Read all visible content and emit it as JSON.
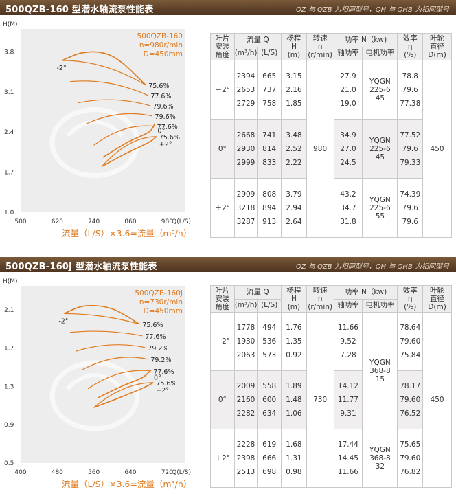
{
  "sections": [
    {
      "title": "500QZB-160 型潜水轴流泵性能表",
      "note": "QZ 与 QZB 为相同型号，QH 与 QHB 为相同型号",
      "chart_data": {
        "type": "line",
        "info_lines": [
          "500QZB-160",
          "n=980r/min",
          "D=450mm"
        ],
        "xlabel": "Q(L/S)",
        "ylabel": "H(M)",
        "xticks": [
          "500",
          "620",
          "740",
          "860",
          "980"
        ],
        "yticks": [
          "3.8",
          "3.1",
          "2.4",
          "1.7",
          "1.0"
        ],
        "xlim": [
          500,
          1040
        ],
        "ylim": [
          1.0,
          4.2
        ],
        "curves": [
          {
            "angle": "-2°",
            "points": [
              [
                636,
                3.65
              ],
              [
                700,
                3.78
              ],
              [
                770,
                3.78
              ],
              [
                830,
                3.62
              ],
              [
                910,
                3.22
              ]
            ]
          },
          {
            "angle": "0°",
            "points": [
              [
                770,
                1.96
              ],
              [
                850,
                2.22
              ],
              [
                920,
                2.4
              ],
              [
                940,
                2.55
              ]
            ]
          },
          {
            "angle": "+2°",
            "points": [
              [
                766,
                1.8
              ],
              [
                850,
                2.04
              ],
              [
                920,
                2.22
              ],
              [
                945,
                2.32
              ]
            ]
          }
        ],
        "efficiency_labels": [
          "75.6%",
          "77.6%",
          "79.6%",
          "79.6%",
          "77.6%",
          "75.6%"
        ],
        "angle_labels": [
          "-2°",
          "0°",
          "+2°"
        ]
      },
      "caption": "流量（L/S）×3.6=流量（m³/h）",
      "table": {
        "headers": {
          "blade_angle": "叶片\n安装\n角度",
          "flow": "流量 Q",
          "flow_m3h": "(m³/h)",
          "flow_ls": "(L/S)",
          "head": "杨程\nH\n(m)",
          "speed": "转速\nn\n(r/min)",
          "power": "功率 N（kw)",
          "shaft_power": "轴功率",
          "motor_power": "电机功率",
          "efficiency": "效率\nη\n(%)",
          "impeller": "叶轮\n直径\nD(m)"
        },
        "speed": "980",
        "impeller": "450",
        "groups": [
          {
            "angle": "－2°",
            "m3h": [
              "2394",
              "2653",
              "2729"
            ],
            "ls": [
              "665",
              "737",
              "758"
            ],
            "h": [
              "3.15",
              "2.16",
              "1.85"
            ],
            "shaft": [
              "27.9",
              "21.0",
              "19.0"
            ],
            "motor": "YQGN\n225-6\n45",
            "eff": [
              "78.8",
              "79.6",
              "77.38"
            ]
          },
          {
            "angle": "0°",
            "m3h": [
              "2668",
              "2930",
              "2999"
            ],
            "ls": [
              "741",
              "814",
              "833"
            ],
            "h": [
              "3.48",
              "2.52",
              "2.22"
            ],
            "shaft": [
              "34.9",
              "27.0",
              "24.5"
            ],
            "motor": "YQGN\n225-6\n45",
            "eff": [
              "77.52",
              "79.6",
              "79.33"
            ]
          },
          {
            "angle": "＋2°",
            "m3h": [
              "2909",
              "3218",
              "3287"
            ],
            "ls": [
              "808",
              "894",
              "913"
            ],
            "h": [
              "3.79",
              "2.94",
              "2.64"
            ],
            "shaft": [
              "43.2",
              "34.7",
              "31.8"
            ],
            "motor": "YQGN\n225-6\n55",
            "eff": [
              "74.39",
              "79.6",
              "79.6"
            ]
          }
        ]
      }
    },
    {
      "title": "500QZB-160J 型潜水轴流泵性能表",
      "note": "QZ 与 QZB 为相同型号，QH 与 QHB 为相同型号",
      "chart_data": {
        "type": "line",
        "info_lines": [
          "500QZB-160J",
          "n=730r/min",
          "D=450mm"
        ],
        "xlabel": "Q(L/S)",
        "ylabel": "H(M)",
        "xticks": [
          "400",
          "480",
          "560",
          "640",
          "720"
        ],
        "yticks": [
          "2.1",
          "1.7",
          "1.3",
          "0.9",
          "0.5"
        ],
        "xlim": [
          400,
          760
        ],
        "ylim": [
          0.5,
          2.35
        ],
        "curves": [
          {
            "angle": "-2°",
            "points": [
              [
                495,
                2.06
              ],
              [
                540,
                2.14
              ],
              [
                600,
                2.11
              ],
              [
                660,
                1.95
              ]
            ]
          },
          {
            "angle": "0°",
            "points": [
              [
                568,
                1.18
              ],
              [
                620,
                1.3
              ],
              [
                665,
                1.39
              ],
              [
                685,
                1.47
              ]
            ]
          },
          {
            "angle": "+2°",
            "points": [
              [
                560,
                1.08
              ],
              [
                620,
                1.19
              ],
              [
                670,
                1.29
              ],
              [
                690,
                1.34
              ]
            ]
          }
        ],
        "efficiency_labels": [
          "75.6%",
          "77.6%",
          "79.2%",
          "79.2%",
          "77.6%",
          "75.6%"
        ],
        "angle_labels": [
          "-2°",
          "0°",
          "+2°"
        ]
      },
      "caption": "流量（L/S）×3.6=流量（m³/h）",
      "table": {
        "headers": {
          "blade_angle": "叶片\n安装\n角度",
          "flow": "流量 Q",
          "flow_m3h": "(m³/h)",
          "flow_ls": "(L/S)",
          "head": "杨程\nH\n(m)",
          "speed": "转速\nn\n(r/min)",
          "power": "功率 N（kw)",
          "shaft_power": "轴功率",
          "motor_power": "电机功率",
          "efficiency": "效率\nη\n(%)",
          "impeller": "叶轮\n直径\nD(m)"
        },
        "speed": "730",
        "impeller": "450",
        "motor_shared": "YQGN\n368-8\n15",
        "groups": [
          {
            "angle": "－2°",
            "m3h": [
              "1778",
              "1930",
              "2063"
            ],
            "ls": [
              "494",
              "536",
              "573"
            ],
            "h": [
              "1.76",
              "1.35",
              "0.92"
            ],
            "shaft": [
              "11.66",
              "9.52",
              "7.28"
            ],
            "eff": [
              "78.64",
              "79.60",
              "75.84"
            ]
          },
          {
            "angle": "0°",
            "m3h": [
              "2009",
              "2160",
              "2282"
            ],
            "ls": [
              "558",
              "600",
              "634"
            ],
            "h": [
              "1.89",
              "1.48",
              "1.06"
            ],
            "shaft": [
              "14.12",
              "11.77",
              "9.31"
            ],
            "eff": [
              "78.17",
              "79.60",
              "76.52"
            ]
          },
          {
            "angle": "＋2°",
            "m3h": [
              "2228",
              "2398",
              "2513"
            ],
            "ls": [
              "619",
              "666",
              "698"
            ],
            "h": [
              "1.68",
              "1.31",
              "0.98"
            ],
            "shaft": [
              "17.44",
              "14.45",
              "11.66"
            ],
            "motor": "YQGN\n368-8\n32",
            "eff": [
              "75.65",
              "79.60",
              "76.82"
            ]
          }
        ]
      }
    }
  ]
}
